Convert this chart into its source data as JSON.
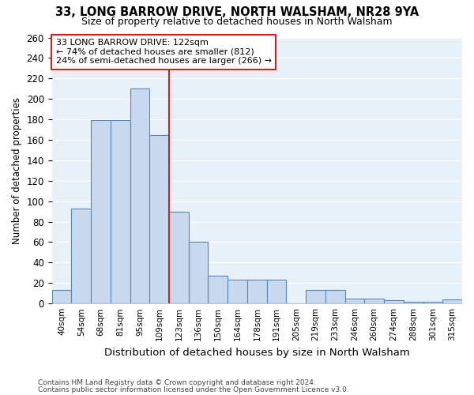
{
  "title": "33, LONG BARROW DRIVE, NORTH WALSHAM, NR28 9YA",
  "subtitle": "Size of property relative to detached houses in North Walsham",
  "xlabel": "Distribution of detached houses by size in North Walsham",
  "ylabel": "Number of detached properties",
  "bin_labels": [
    "40sqm",
    "54sqm",
    "68sqm",
    "81sqm",
    "95sqm",
    "109sqm",
    "123sqm",
    "136sqm",
    "150sqm",
    "164sqm",
    "178sqm",
    "191sqm",
    "205sqm",
    "219sqm",
    "233sqm",
    "246sqm",
    "260sqm",
    "274sqm",
    "288sqm",
    "301sqm",
    "315sqm"
  ],
  "values": [
    13,
    93,
    179,
    179,
    210,
    165,
    90,
    60,
    27,
    23,
    23,
    23,
    0,
    13,
    13,
    5,
    5,
    3,
    2,
    2,
    4
  ],
  "bar_color": "#c8d8ee",
  "bar_edge_color": "#5588bb",
  "vline_position": 6,
  "annotation_line1": "33 LONG BARROW DRIVE: 122sqm",
  "annotation_line2": "← 74% of detached houses are smaller (812)",
  "annotation_line3": "24% of semi-detached houses are larger (266) →",
  "annotation_box_color": "#ffffff",
  "annotation_box_edge": "#cc2222",
  "vline_color": "#cc2222",
  "ylim": [
    0,
    260
  ],
  "yticks": [
    0,
    20,
    40,
    60,
    80,
    100,
    120,
    140,
    160,
    180,
    200,
    220,
    240,
    260
  ],
  "plot_bg_color": "#e8f0f8",
  "grid_color": "#ffffff",
  "fig_bg_color": "#ffffff",
  "footer_line1": "Contains HM Land Registry data © Crown copyright and database right 2024.",
  "footer_line2": "Contains public sector information licensed under the Open Government Licence v3.0."
}
